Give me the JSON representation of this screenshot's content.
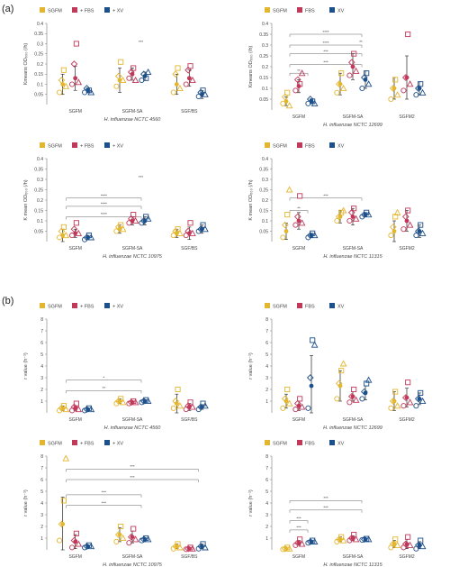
{
  "panel_labels": [
    "(a)",
    "(b)"
  ],
  "colors": {
    "SGFM": "#e3b62f",
    "+ FBS": "#c0395a",
    "+ XV": "#1d4f8a",
    "axis": "#7a7a7a",
    "bracket": "#666666"
  },
  "chart_data": [
    {
      "type": "scatter",
      "group": "(a)",
      "title": "",
      "xlabel": "H. influenzae NCTC 4560",
      "ylabel": "Kmeans OD₆₀₀ (/h)",
      "legend": [
        "SGFM",
        "+ FBS",
        "+ XV"
      ],
      "categories": [
        "SGFM",
        "SGFM-SA",
        "SGF/BS"
      ],
      "ylim": [
        0,
        0.4
      ],
      "yticks": [
        0.05,
        0.1,
        0.15,
        0.2,
        0.25,
        0.3,
        0.35,
        0.4
      ],
      "series": [
        {
          "name": "SGFM",
          "means": [
            0.1,
            0.12,
            0.1
          ],
          "err": [
            0.05,
            0.06,
            0.05
          ],
          "points": [
            [
              0.06,
              0.12,
              0.17,
              0.09
            ],
            [
              0.09,
              0.14,
              0.21,
              0.12
            ],
            [
              0.06,
              0.15,
              0.18,
              0.08
            ]
          ]
        },
        {
          "name": "+ FBS",
          "means": [
            0.13,
            0.15,
            0.13
          ],
          "err": [
            0.06,
            0.03,
            0.04
          ],
          "points": [
            [
              0.1,
              0.2,
              0.3,
              0.11
            ],
            [
              0.13,
              0.16,
              0.18,
              0.12
            ],
            [
              0.1,
              0.17,
              0.19,
              0.12
            ]
          ]
        },
        {
          "name": "+ XV",
          "means": [
            0.07,
            0.14,
            0.05
          ],
          "err": [
            0.01,
            0.02,
            0.02
          ],
          "points": [
            [
              0.06,
              0.08,
              0.07,
              0.06
            ],
            [
              0.12,
              0.15,
              0.13,
              0.16
            ],
            [
              0.04,
              0.06,
              0.07,
              0.05
            ]
          ]
        }
      ],
      "brackets": [],
      "annotations": [
        "***"
      ]
    },
    {
      "type": "scatter",
      "group": "(a)",
      "title": "",
      "xlabel": "H. influenzae NCTC 12699",
      "ylabel": "Kmeans OD₆₀₀ (/h)",
      "legend": [
        "SGFM",
        "FBS",
        "XV"
      ],
      "categories": [
        "SGFM",
        "SGFM-SA",
        "SGFM2"
      ],
      "ylim": [
        0,
        0.4
      ],
      "yticks": [
        0.05,
        0.1,
        0.15,
        0.2,
        0.25,
        0.3,
        0.35,
        0.4
      ],
      "series": [
        {
          "name": "SGFM",
          "means": [
            0.04,
            0.12,
            0.1
          ],
          "err": [
            0.02,
            0.05,
            0.05
          ],
          "points": [
            [
              0.03,
              0.06,
              0.08,
              0.02
            ],
            [
              0.08,
              0.12,
              0.17,
              0.1
            ],
            [
              0.05,
              0.1,
              0.14,
              0.07
            ]
          ]
        },
        {
          "name": "FBS",
          "means": [
            0.11,
            0.2,
            0.15
          ],
          "err": [
            0.03,
            0.06,
            0.1
          ],
          "points": [
            [
              0.09,
              0.14,
              0.12,
              0.17
            ],
            [
              0.16,
              0.22,
              0.26,
              0.18
            ],
            [
              0.09,
              0.15,
              0.35,
              0.12
            ]
          ]
        },
        {
          "name": "XV",
          "means": [
            0.04,
            0.14,
            0.1
          ],
          "err": [
            0.01,
            0.04,
            0.03
          ],
          "points": [
            [
              0.03,
              0.05,
              0.04,
              0.03
            ],
            [
              0.1,
              0.15,
              0.17,
              0.12
            ],
            [
              0.07,
              0.1,
              0.12,
              0.08
            ]
          ]
        }
      ],
      "brackets": [
        [
          0,
          1,
          0.35,
          "****"
        ],
        [
          0,
          1,
          0.3,
          "****"
        ],
        [
          0,
          1,
          0.26,
          "***"
        ],
        [
          0,
          1,
          0.21,
          "***"
        ],
        [
          0,
          0,
          0.17,
          "**"
        ]
      ],
      "annotations": [
        "**"
      ]
    },
    {
      "type": "scatter",
      "group": "(a)",
      "title": "",
      "xlabel": "H. influenzae NCTC 10975",
      "ylabel": "K mean OD₆₀₀ (/h)",
      "legend": [
        "SGFM",
        "+ FBS",
        "+ XV"
      ],
      "categories": [
        "SGFM",
        "SGFM-SA",
        "SGF/BS"
      ],
      "ylim": [
        0,
        0.4
      ],
      "yticks": [
        0.05,
        0.1,
        0.15,
        0.2,
        0.25,
        0.3,
        0.35,
        0.4
      ],
      "series": [
        {
          "name": "SGFM",
          "means": [
            0.03,
            0.06,
            0.04
          ],
          "err": [
            0.03,
            0.02,
            0.02
          ],
          "points": [
            [
              0.02,
              0.05,
              0.07,
              0.03
            ],
            [
              0.05,
              0.07,
              0.08,
              0.06
            ],
            [
              0.03,
              0.05,
              0.06,
              0.04
            ]
          ]
        },
        {
          "name": "+ FBS",
          "means": [
            0.04,
            0.1,
            0.04
          ],
          "err": [
            0.02,
            0.02,
            0.03
          ],
          "points": [
            [
              0.03,
              0.06,
              0.09,
              0.04
            ],
            [
              0.09,
              0.11,
              0.13,
              0.1
            ],
            [
              0.03,
              0.05,
              0.09,
              0.04
            ]
          ]
        },
        {
          "name": "+ XV",
          "means": [
            0.02,
            0.1,
            0.06
          ],
          "err": [
            0.01,
            0.02,
            0.02
          ],
          "points": [
            [
              0.01,
              0.02,
              0.03,
              0.02
            ],
            [
              0.09,
              0.1,
              0.12,
              0.11
            ],
            [
              0.05,
              0.06,
              0.08,
              0.06
            ]
          ]
        }
      ],
      "brackets": [
        [
          0,
          1,
          0.21,
          "****"
        ],
        [
          0,
          1,
          0.17,
          "****"
        ],
        [
          0,
          1,
          0.12,
          "****"
        ]
      ],
      "annotations": [
        "***"
      ]
    },
    {
      "type": "scatter",
      "group": "(a)",
      "title": "",
      "xlabel": "H. influenzae NCTC 11315",
      "ylabel": "K mean OD₆₀₀ (/h)",
      "legend": [
        "SGFM",
        "FBS",
        "XV"
      ],
      "categories": [
        "SGFM",
        "SGFM-SA",
        "SGFM2"
      ],
      "ylim": [
        0,
        0.4
      ],
      "yticks": [
        0.05,
        0.1,
        0.15,
        0.2,
        0.25,
        0.3,
        0.35,
        0.4
      ],
      "series": [
        {
          "name": "SGFM",
          "means": [
            0.05,
            0.12,
            0.05
          ],
          "err": [
            0.04,
            0.03,
            0.05
          ],
          "points": [
            [
              0.02,
              0.08,
              0.13,
              0.25
            ],
            [
              0.1,
              0.12,
              0.14,
              0.15
            ],
            [
              0.03,
              0.07,
              0.12,
              0.14
            ]
          ]
        },
        {
          "name": "FBS",
          "means": [
            0.1,
            0.12,
            0.1
          ],
          "err": [
            0.04,
            0.04,
            0.05
          ],
          "points": [
            [
              0.08,
              0.12,
              0.22,
              0.09
            ],
            [
              0.1,
              0.14,
              0.16,
              0.11
            ],
            [
              0.06,
              0.12,
              0.15,
              0.08
            ]
          ]
        },
        {
          "name": "XV",
          "means": [
            0.03,
            0.13,
            0.05
          ],
          "err": [
            0.01,
            0.01,
            0.03
          ],
          "points": [
            [
              0.02,
              0.03,
              0.04,
              0.03
            ],
            [
              0.12,
              0.13,
              0.14,
              0.13
            ],
            [
              0.03,
              0.05,
              0.08,
              0.04
            ]
          ]
        }
      ],
      "brackets": [
        [
          0,
          1,
          0.21,
          "***"
        ],
        [
          0,
          0,
          0.15,
          "**"
        ]
      ],
      "annotations": []
    },
    {
      "type": "scatter",
      "group": "(b)",
      "title": "",
      "xlabel": "H. influenzae NCTC 4560",
      "ylabel": "r value (h⁻¹)",
      "legend": [
        "SGFM",
        "+ FBS",
        "+ XV"
      ],
      "categories": [
        "SGFM",
        "SGFM-SA",
        "SGF/BS"
      ],
      "ylim": [
        0,
        8
      ],
      "yticks": [
        1,
        2,
        3,
        4,
        5,
        6,
        7,
        8
      ],
      "series": [
        {
          "name": "SGFM",
          "means": [
            0.4,
            1.0,
            0.8
          ],
          "err": [
            0.2,
            0.2,
            0.8
          ],
          "points": [
            [
              0.2,
              0.4,
              0.6,
              0.3
            ],
            [
              0.8,
              1.0,
              1.2,
              0.9
            ],
            [
              0.4,
              1.0,
              2.0,
              0.6
            ]
          ]
        },
        {
          "name": "+ FBS",
          "means": [
            0.4,
            0.9,
            0.5
          ],
          "err": [
            0.2,
            0.1,
            0.3
          ],
          "points": [
            [
              0.2,
              0.5,
              0.8,
              0.3
            ],
            [
              0.8,
              0.9,
              1.0,
              0.9
            ],
            [
              0.3,
              0.6,
              0.9,
              0.5
            ]
          ]
        },
        {
          "name": "+ XV",
          "means": [
            0.3,
            1.0,
            0.5
          ],
          "err": [
            0.1,
            0.1,
            0.2
          ],
          "points": [
            [
              0.2,
              0.3,
              0.4,
              0.3
            ],
            [
              0.9,
              1.0,
              1.1,
              1.0
            ],
            [
              0.3,
              0.5,
              0.8,
              0.6
            ]
          ]
        }
      ],
      "brackets": [
        [
          0,
          1,
          2.8,
          "*"
        ],
        [
          0,
          1,
          1.9,
          "**"
        ]
      ],
      "annotations": []
    },
    {
      "type": "scatter",
      "group": "(b)",
      "title": "",
      "xlabel": "H. influenzae NCTC 12699",
      "ylabel": "r value (h⁻¹)",
      "legend": [
        "SGFM",
        "FBS",
        "XV"
      ],
      "categories": [
        "SGFM",
        "SGFM-SA",
        "SGFM2"
      ],
      "ylim": [
        0,
        8
      ],
      "yticks": [
        1,
        2,
        3,
        4,
        5,
        6,
        7,
        8
      ],
      "series": [
        {
          "name": "SGFM",
          "means": [
            1.0,
            2.3,
            1.0
          ],
          "err": [
            0.6,
            1.3,
            0.8
          ],
          "points": [
            [
              0.4,
              1.2,
              2.0,
              0.8
            ],
            [
              1.2,
              2.5,
              3.6,
              4.2
            ],
            [
              0.4,
              1.0,
              1.8,
              0.6
            ]
          ]
        },
        {
          "name": "FBS",
          "means": [
            0.6,
            1.4,
            1.3
          ],
          "err": [
            0.4,
            0.4,
            0.8
          ],
          "points": [
            [
              0.3,
              0.8,
              1.2,
              0.5
            ],
            [
              0.9,
              1.4,
              2.0,
              1.1
            ],
            [
              0.6,
              1.3,
              2.6,
              0.9
            ]
          ]
        },
        {
          "name": "XV",
          "means": [
            2.3,
            1.7,
            1.2
          ],
          "err": [
            2.6,
            0.6,
            0.5
          ],
          "points": [
            [
              0.4,
              3.0,
              6.2,
              5.8
            ],
            [
              1.2,
              1.8,
              2.5,
              2.8
            ],
            [
              0.6,
              1.2,
              1.7,
              1.0
            ]
          ]
        }
      ],
      "brackets": [],
      "annotations": []
    },
    {
      "type": "scatter",
      "group": "(b)",
      "title": "",
      "xlabel": "H. influenzae NCTC 10975",
      "ylabel": "r value (h⁻¹)",
      "legend": [
        "SGFM",
        "+ FBS",
        "+ XV"
      ],
      "categories": [
        "SGFM",
        "SGFM-SA",
        "SGF/BS"
      ],
      "ylim": [
        0,
        8
      ],
      "yticks": [
        1,
        2,
        3,
        4,
        5,
        6,
        7,
        8
      ],
      "series": [
        {
          "name": "SGFM",
          "means": [
            2.2,
            1.3,
            0.3
          ],
          "err": [
            2.3,
            0.6,
            0.2
          ],
          "points": [
            [
              0.8,
              2.2,
              4.2,
              7.8
            ],
            [
              0.7,
              1.3,
              2.0,
              1.0
            ],
            [
              0.1,
              0.3,
              0.5,
              0.2
            ]
          ]
        },
        {
          "name": "+ FBS",
          "means": [
            0.7,
            1.1,
            0.1
          ],
          "err": [
            0.6,
            0.5,
            0.1
          ],
          "points": [
            [
              0.2,
              0.8,
              1.4,
              0.5
            ],
            [
              0.6,
              1.1,
              1.8,
              0.9
            ],
            [
              0.05,
              0.1,
              0.2,
              0.1
            ]
          ]
        },
        {
          "name": "+ XV",
          "means": [
            0.3,
            0.9,
            0.3
          ],
          "err": [
            0.1,
            0.1,
            0.2
          ],
          "points": [
            [
              0.2,
              0.3,
              0.4,
              0.3
            ],
            [
              0.8,
              0.9,
              1.0,
              0.9
            ],
            [
              0.1,
              0.3,
              0.5,
              0.2
            ]
          ]
        }
      ],
      "brackets": [
        [
          0,
          2,
          6.9,
          "***"
        ],
        [
          0,
          2,
          6.0,
          "***"
        ],
        [
          0,
          1,
          4.7,
          "***"
        ],
        [
          0,
          1,
          3.8,
          "***"
        ]
      ],
      "annotations": []
    },
    {
      "type": "scatter",
      "group": "(b)",
      "title": "",
      "xlabel": "H. influenzae NCTC 11315",
      "ylabel": "r value (h⁻¹)",
      "legend": [
        "SGFM",
        "FBS",
        "XV"
      ],
      "categories": [
        "SGFM",
        "SGFM-SA",
        "SGFM2"
      ],
      "ylim": [
        0,
        8
      ],
      "yticks": [
        1,
        2,
        3,
        4,
        5,
        6,
        7,
        8
      ],
      "series": [
        {
          "name": "SGFM",
          "means": [
            0.1,
            0.9,
            0.5
          ],
          "err": [
            0.05,
            0.2,
            0.3
          ],
          "points": [
            [
              0.05,
              0.1,
              0.2,
              0.1
            ],
            [
              0.7,
              0.9,
              1.1,
              0.8
            ],
            [
              0.2,
              0.5,
              0.9,
              0.4
            ]
          ]
        },
        {
          "name": "FBS",
          "means": [
            0.6,
            1.0,
            0.5
          ],
          "err": [
            0.2,
            0.2,
            0.4
          ],
          "points": [
            [
              0.4,
              0.6,
              0.9,
              0.5
            ],
            [
              0.8,
              1.0,
              1.3,
              0.9
            ],
            [
              0.2,
              0.5,
              1.1,
              0.4
            ]
          ]
        },
        {
          "name": "XV",
          "means": [
            0.7,
            0.9,
            0.4
          ],
          "err": [
            0.1,
            0.05,
            0.3
          ],
          "points": [
            [
              0.6,
              0.7,
              0.8,
              0.7
            ],
            [
              0.85,
              0.9,
              0.95,
              0.9
            ],
            [
              0.1,
              0.4,
              0.8,
              0.3
            ]
          ]
        }
      ],
      "brackets": [
        [
          0,
          1,
          4.2,
          "***"
        ],
        [
          0,
          1,
          3.4,
          "***"
        ],
        [
          0,
          0,
          2.5,
          "***"
        ],
        [
          0,
          0,
          1.7,
          "***"
        ]
      ],
      "annotations": []
    }
  ]
}
